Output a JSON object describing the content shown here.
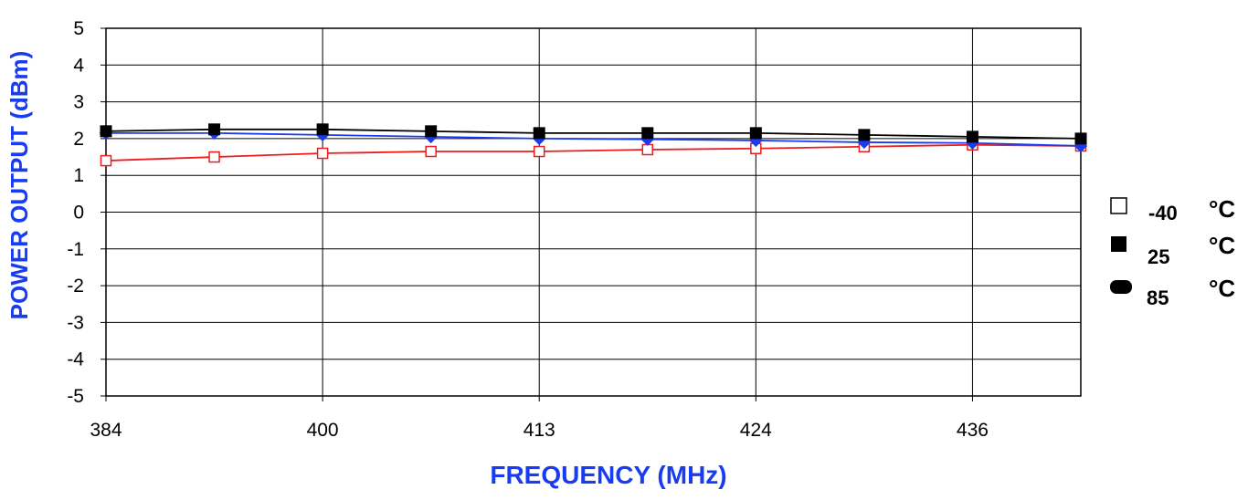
{
  "chart_data": {
    "type": "line",
    "title": "",
    "xlabel": "FREQUENCY (MHz)",
    "ylabel": "POWER OUTPUT (dBm)",
    "x_ticks": [
      "384",
      "400",
      "413",
      "424",
      "436"
    ],
    "x": [
      384,
      392,
      400,
      406,
      413,
      418,
      424,
      430,
      436,
      443
    ],
    "ylim": [
      -5,
      5
    ],
    "y_ticks": [
      "5",
      "4",
      "3",
      "2",
      "1",
      "0",
      "-1",
      "-2",
      "-3",
      "-4",
      "-5"
    ],
    "grid": true,
    "legend_position": "right",
    "series": [
      {
        "name": "-40",
        "unit": "°C",
        "marker": "open-square",
        "color": "#ee1c1c",
        "values": [
          1.4,
          1.5,
          1.6,
          1.65,
          1.65,
          1.7,
          1.73,
          1.78,
          1.83,
          1.8
        ]
      },
      {
        "name": "25",
        "unit": "°C",
        "marker": "filled-square",
        "color": "#000000",
        "values": [
          2.2,
          2.25,
          2.25,
          2.2,
          2.15,
          2.15,
          2.15,
          2.1,
          2.05,
          2.0
        ]
      },
      {
        "name": "85",
        "unit": "°C",
        "marker": "filled-diamond",
        "color": "#1a3cf0",
        "values": [
          2.15,
          2.15,
          2.1,
          2.05,
          2.0,
          1.98,
          1.95,
          1.9,
          1.88,
          1.8
        ]
      }
    ]
  }
}
